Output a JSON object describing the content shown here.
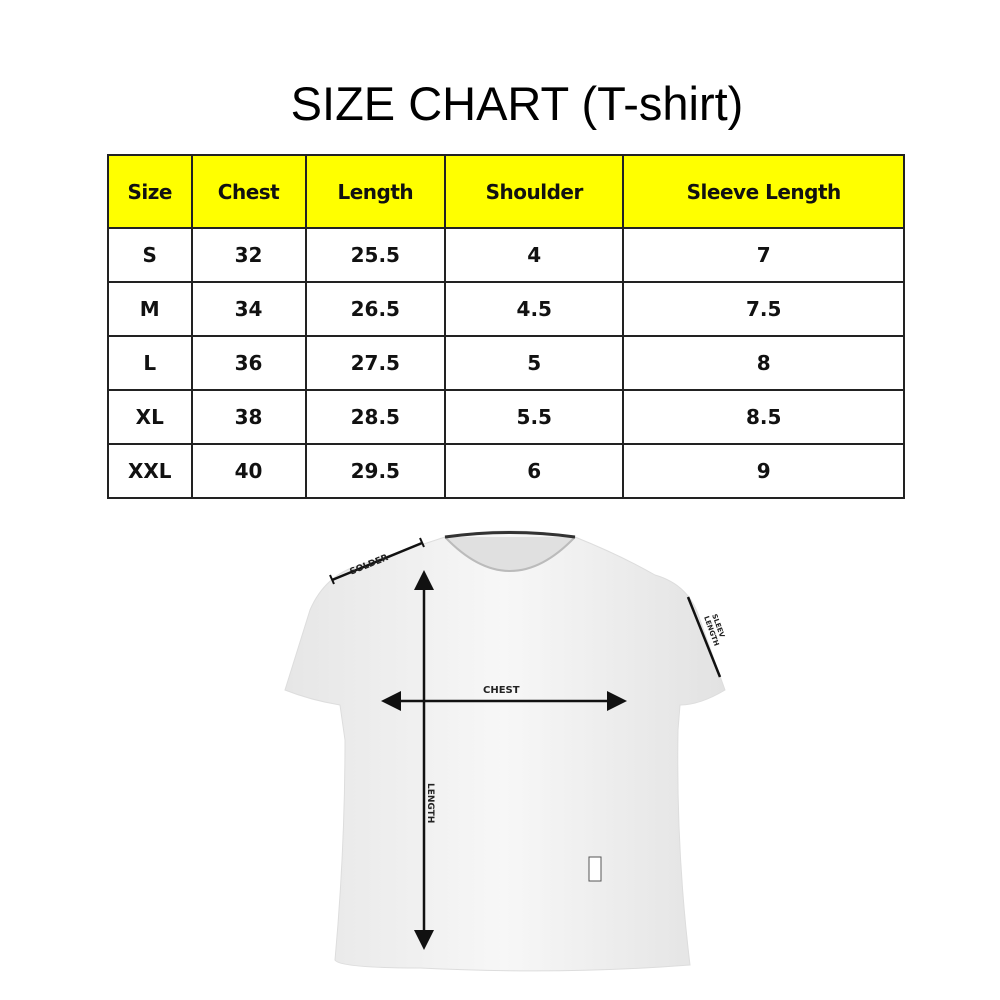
{
  "title": "SIZE CHART (T-shirt)",
  "table": {
    "headers": [
      "Size",
      "Chest",
      "Length",
      "Shoulder",
      "Sleeve Length"
    ],
    "rows": [
      [
        "S",
        "32",
        "25.5",
        "4",
        "7"
      ],
      [
        "M",
        "34",
        "26.5",
        "4.5",
        "7.5"
      ],
      [
        "L",
        "36",
        "27.5",
        "5",
        "8"
      ],
      [
        "XL",
        "38",
        "28.5",
        "5.5",
        "8.5"
      ],
      [
        "XXL",
        "40",
        "29.5",
        "6",
        "9"
      ]
    ]
  },
  "diagram": {
    "shoulder_label": "SOLDER",
    "chest_label": "CHEST",
    "length_label": "LENGTH",
    "sleeve_label_1": "SLEEV",
    "sleeve_label_2": "LENGTH"
  },
  "colors": {
    "header_bg": "#ffff00",
    "shirt": "#f2f2f2"
  }
}
